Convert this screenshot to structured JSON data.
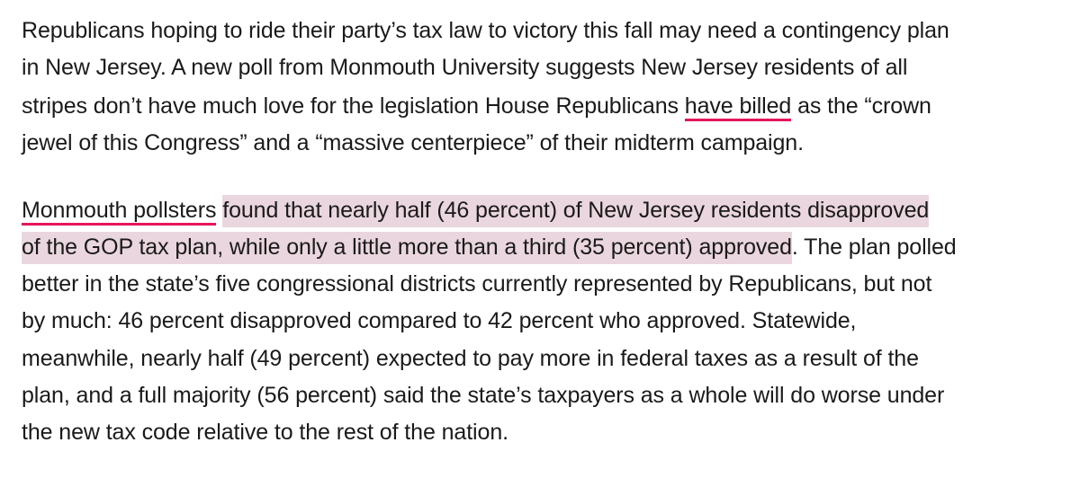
{
  "article": {
    "paragraph1": {
      "line1": "Republicans hoping to ride their party’s tax law to victory this fall may need a contingency plan",
      "line2": "in New Jersey. A new poll from Monmouth University suggests New Jersey residents of all",
      "line3_before": "stripes don’t have much love for the legislation House Republicans ",
      "line3_link": "have billed",
      "line3_after": " as the “crown",
      "line4": "jewel of this Congress” and a “massive centerpiece” of their midterm campaign."
    },
    "paragraph2": {
      "line1_link": "Monmouth pollsters",
      "line1_space": " ",
      "line1_highlight": "found that nearly half (46 percent) of New Jersey residents disapproved",
      "line2_highlight": "of the GOP tax plan, while only a little more than a third (35 percent) approved",
      "line2_after": ". The plan polled",
      "line3": "better in the state’s five congressional districts currently represented by Republicans, but not",
      "line4": "by much: 46 percent disapproved compared to 42 percent who approved. Statewide,",
      "line5": "meanwhile, nearly half (49 percent) expected to pay more in federal taxes as a result of the",
      "line6": "plan, and a full majority (56 percent) said the state’s taxpayers as a whole will do worse under",
      "line7": "the new tax code relative to the rest of the nation."
    }
  },
  "colors": {
    "link_underline": "#e5165a",
    "highlight": "#ead6de",
    "text": "#1a1a1a"
  }
}
